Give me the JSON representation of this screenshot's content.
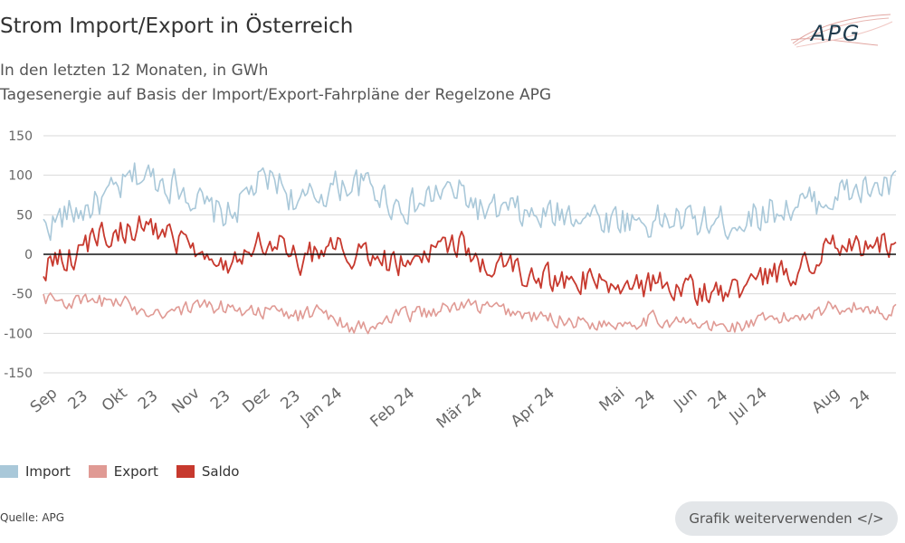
{
  "header": {
    "title": "Strom Import/Export in Österreich",
    "subtitle_line1": "In den letzten 12 Monaten, in GWh",
    "subtitle_line2": "Tagesenergie auf Basis der Import/Export-Fahrpläne der Regelzone APG",
    "logo_text": "APG"
  },
  "footer": {
    "source": "Quelle: APG",
    "reuse_button": "Grafik weiterverwenden </>"
  },
  "colors": {
    "import": "#a9c8d9",
    "export": "#e09a94",
    "saldo": "#c7392e",
    "grid": "#d9d9d9",
    "zero_line": "#111111",
    "axis_text": "#666666"
  },
  "chart_data": {
    "type": "line",
    "title": "Strom Import/Export in Österreich",
    "xlabel": "",
    "ylabel": "",
    "ylim": [
      -150,
      150
    ],
    "yticks": [
      150,
      100,
      50,
      0,
      -50,
      -100,
      -150
    ],
    "ytick_labels": [
      "150",
      "100",
      "50",
      "0",
      "-50",
      "-100",
      "-150"
    ],
    "grid": true,
    "legend_position": "bottom-left",
    "x_start": "2023-09-01",
    "x_end": "2024-08-31",
    "xtick_labels": [
      {
        "lines": [
          "Sep",
          "23"
        ],
        "day": 0
      },
      {
        "lines": [
          "Okt",
          "23"
        ],
        "day": 30
      },
      {
        "lines": [
          "Nov",
          "23"
        ],
        "day": 61
      },
      {
        "lines": [
          "Dez",
          "23"
        ],
        "day": 91
      },
      {
        "lines": [
          "Jan 24"
        ],
        "day": 122
      },
      {
        "lines": [
          "Feb 24"
        ],
        "day": 153
      },
      {
        "lines": [
          "Mär 24"
        ],
        "day": 182
      },
      {
        "lines": [
          "Apr 24"
        ],
        "day": 213
      },
      {
        "lines": [
          "Mai",
          "24"
        ],
        "day": 243
      },
      {
        "lines": [
          "Jun",
          "24"
        ],
        "day": 274
      },
      {
        "lines": [
          "Jul 24"
        ],
        "day": 304
      },
      {
        "lines": [
          "Aug",
          "24"
        ],
        "day": 335
      }
    ],
    "series": [
      {
        "name": "Import",
        "key": "import",
        "anchor_days": [
          0,
          10,
          20,
          30,
          40,
          50,
          60,
          70,
          80,
          90,
          100,
          110,
          120,
          130,
          140,
          150,
          160,
          170,
          180,
          190,
          200,
          210,
          220,
          230,
          240,
          250,
          260,
          270,
          280,
          290,
          300,
          310,
          320,
          330,
          340,
          350,
          360
        ],
        "anchor_values": [
          35,
          50,
          60,
          75,
          100,
          95,
          85,
          55,
          50,
          85,
          95,
          60,
          80,
          90,
          85,
          65,
          60,
          80,
          75,
          50,
          55,
          45,
          50,
          55,
          45,
          45,
          40,
          45,
          40,
          40,
          45,
          55,
          60,
          65,
          75,
          80,
          85
        ]
      },
      {
        "name": "Export",
        "key": "export",
        "anchor_days": [
          0,
          10,
          20,
          30,
          40,
          50,
          60,
          70,
          80,
          90,
          100,
          110,
          120,
          130,
          140,
          150,
          160,
          170,
          180,
          190,
          200,
          210,
          220,
          230,
          240,
          250,
          260,
          270,
          280,
          290,
          300,
          310,
          320,
          330,
          340,
          350,
          360
        ],
        "anchor_values": [
          -55,
          -60,
          -62,
          -58,
          -68,
          -72,
          -70,
          -65,
          -68,
          -70,
          -75,
          -78,
          -70,
          -90,
          -95,
          -80,
          -75,
          -70,
          -65,
          -68,
          -72,
          -80,
          -82,
          -85,
          -88,
          -85,
          -82,
          -85,
          -90,
          -92,
          -90,
          -85,
          -80,
          -72,
          -65,
          -68,
          -72
        ]
      },
      {
        "name": "Saldo",
        "key": "saldo",
        "anchor_days": [
          0,
          10,
          20,
          30,
          40,
          50,
          60,
          70,
          80,
          90,
          100,
          110,
          120,
          130,
          140,
          150,
          160,
          170,
          180,
          190,
          200,
          210,
          220,
          230,
          240,
          250,
          260,
          270,
          280,
          290,
          300,
          310,
          320,
          330,
          340,
          350,
          360
        ],
        "anchor_values": [
          -15,
          -5,
          15,
          25,
          35,
          30,
          10,
          -10,
          -15,
          20,
          20,
          -10,
          10,
          5,
          -5,
          -10,
          -15,
          10,
          10,
          -15,
          -20,
          -35,
          -30,
          -30,
          -40,
          -40,
          -40,
          -40,
          -45,
          -50,
          -45,
          -30,
          -20,
          -5,
          10,
          12,
          15
        ]
      }
    ]
  }
}
